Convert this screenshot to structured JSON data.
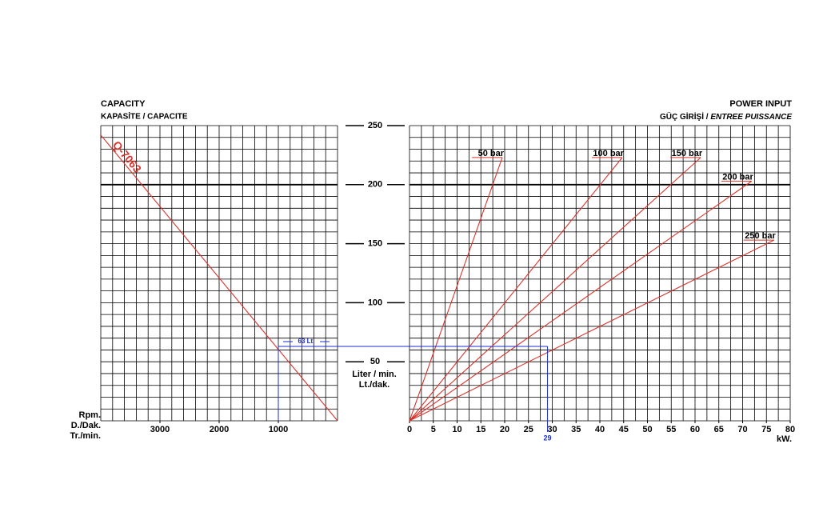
{
  "chart_data": [
    {
      "type": "line",
      "title": "CAPACITY",
      "subtitle": "KAPASİTE / CAPACITE",
      "x_label": [
        "Rpm.",
        "D./Dak.",
        "Tr./min."
      ],
      "y_label": [
        "Liter / min.",
        "Lt./dak."
      ],
      "xlim": [
        4000,
        0
      ],
      "ylim": [
        0,
        250
      ],
      "xticks": [
        3000,
        2000,
        1000
      ],
      "yticks": [
        50,
        100,
        150,
        200,
        250
      ],
      "ymajor": 200,
      "series": [
        {
          "name": "Q-7063",
          "color": "#d9342b",
          "x": [
            4000,
            0
          ],
          "values": [
            242,
            0
          ]
        }
      ],
      "reference": {
        "x": 1000,
        "y": 63,
        "label": "63 Lt.",
        "color": "#1a2fd0"
      }
    },
    {
      "type": "line",
      "title": "POWER INPUT",
      "subtitle": [
        "GÜÇ GİRİŞİ /",
        "ENTREE PUISSANCE"
      ],
      "x_label": "kW.",
      "xlim": [
        0,
        80
      ],
      "ylim": [
        0,
        250
      ],
      "xticks": [
        0,
        5,
        10,
        15,
        20,
        25,
        30,
        35,
        40,
        45,
        50,
        55,
        60,
        65,
        70,
        75,
        80
      ],
      "ymajor": 200,
      "series": [
        {
          "name": "50 bar",
          "color": "#d9342b",
          "x": [
            0,
            19.5
          ],
          "values": [
            0,
            223
          ]
        },
        {
          "name": "100 bar",
          "color": "#d9342b",
          "x": [
            0,
            44.7
          ],
          "values": [
            0,
            223
          ]
        },
        {
          "name": "150 bar",
          "color": "#d9342b",
          "x": [
            0,
            61.2
          ],
          "values": [
            0,
            223
          ]
        },
        {
          "name": "200 bar",
          "color": "#d9342b",
          "x": [
            0,
            71.9
          ],
          "values": [
            0,
            203
          ]
        },
        {
          "name": "250 bar",
          "color": "#d9342b",
          "x": [
            0,
            76.6
          ],
          "values": [
            0,
            153
          ]
        }
      ],
      "reference": {
        "x": 29,
        "y": 63,
        "color": "#1a2fd0"
      }
    }
  ]
}
